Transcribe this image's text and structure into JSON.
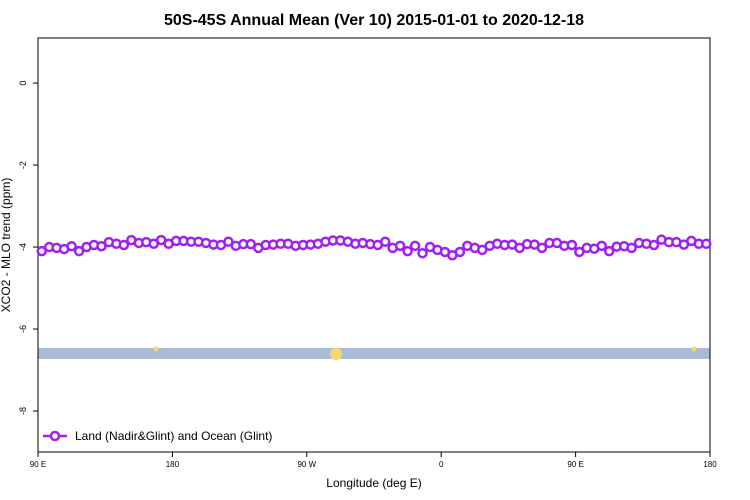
{
  "chart_data": {
    "type": "line",
    "title": "50S-45S Annual Mean (Ver 10)   2015-01-01 to 2020-12-18",
    "x_label": "Longitude (deg E)",
    "y_label": "XCO2 - MLO trend (ppm)",
    "x": [
      92.5,
      97.5,
      102.5,
      107.5,
      112.5,
      117.5,
      122.5,
      127.5,
      132.5,
      137.5,
      142.5,
      147.5,
      152.5,
      157.5,
      162.5,
      167.5,
      172.5,
      177.5,
      182.5,
      187.5,
      192.5,
      197.5,
      202.5,
      207.5,
      212.5,
      217.5,
      222.5,
      227.5,
      232.5,
      237.5,
      242.5,
      247.5,
      252.5,
      257.5,
      262.5,
      267.5,
      272.5,
      277.5,
      282.5,
      287.5,
      292.5,
      297.5,
      302.5,
      307.5,
      312.5,
      317.5,
      322.5,
      327.5,
      332.5,
      337.5,
      342.5,
      347.5,
      352.5,
      357.5,
      362.5,
      367.5,
      372.5,
      377.5,
      382.5,
      387.5,
      392.5,
      397.5,
      402.5,
      407.5,
      412.5,
      417.5,
      422.5,
      427.5,
      432.5,
      437.5,
      442.5,
      447.5,
      452.5,
      457.5,
      462.5,
      467.5,
      472.5,
      477.5,
      482.5,
      487.5,
      492.5,
      497.5,
      502.5,
      507.5,
      512.5,
      517.5,
      522.5,
      527.5,
      532.5,
      537.5
    ],
    "series": [
      {
        "name": "Land (Nadir&Glint) and Ocean (Glint)",
        "color": "#a020f0",
        "values": [
          -4.1,
          -4.0,
          -4.02,
          -4.05,
          -3.98,
          -4.1,
          -4.0,
          -3.95,
          -3.98,
          -3.88,
          -3.92,
          -3.95,
          -3.83,
          -3.9,
          -3.88,
          -3.92,
          -3.83,
          -3.92,
          -3.85,
          -3.85,
          -3.87,
          -3.87,
          -3.9,
          -3.94,
          -3.95,
          -3.87,
          -3.97,
          -3.93,
          -3.93,
          -4.02,
          -3.95,
          -3.94,
          -3.92,
          -3.92,
          -3.97,
          -3.95,
          -3.94,
          -3.92,
          -3.87,
          -3.84,
          -3.84,
          -3.87,
          -3.92,
          -3.9,
          -3.93,
          -3.95,
          -3.87,
          -4.02,
          -3.97,
          -4.1,
          -3.97,
          -4.15,
          -4.0,
          -4.07,
          -4.12,
          -4.2,
          -4.12,
          -3.97,
          -4.02,
          -4.07,
          -3.97,
          -3.92,
          -3.95,
          -3.94,
          -4.02,
          -3.93,
          -3.94,
          -4.02,
          -3.9,
          -3.9,
          -3.97,
          -3.95,
          -4.12,
          -4.02,
          -4.04,
          -3.97,
          -4.1,
          -3.99,
          -3.98,
          -4.02,
          -3.9,
          -3.92,
          -3.95,
          -3.82,
          -3.88,
          -3.88,
          -3.94,
          -3.85,
          -3.92,
          -3.92
        ]
      }
    ],
    "xlim": [
      90,
      540
    ],
    "xticks": [
      {
        "value": 90,
        "label": "90 E"
      },
      {
        "value": 180,
        "label": "180"
      },
      {
        "value": 270,
        "label": "90 W"
      },
      {
        "value": 360,
        "label": "0"
      },
      {
        "value": 450,
        "label": "90 E"
      },
      {
        "value": 540,
        "label": "180"
      }
    ],
    "ylim": [
      -9,
      1.1
    ],
    "yticks": [
      0,
      -2,
      -4,
      -6,
      -8
    ],
    "legend": "bottom-left"
  }
}
